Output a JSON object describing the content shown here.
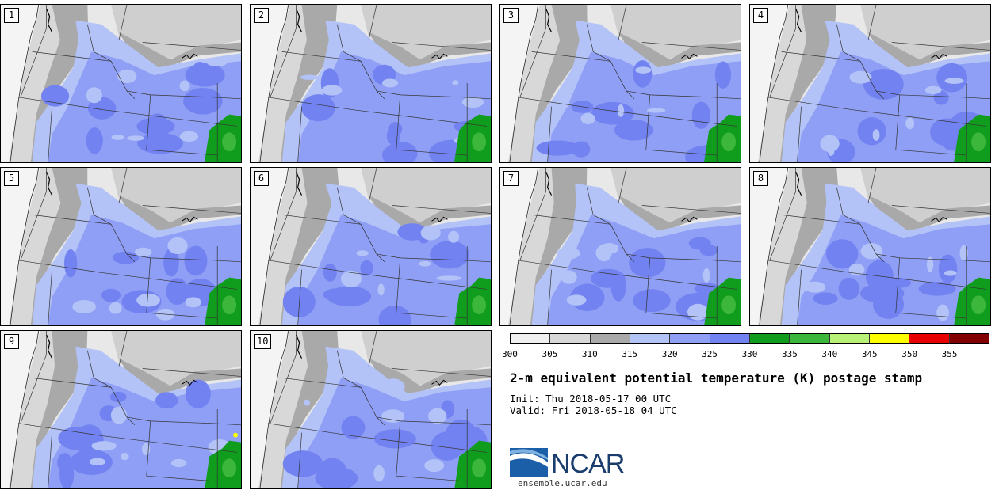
{
  "panels": [
    {
      "label": "1"
    },
    {
      "label": "2"
    },
    {
      "label": "3"
    },
    {
      "label": "4"
    },
    {
      "label": "5"
    },
    {
      "label": "6"
    },
    {
      "label": "7"
    },
    {
      "label": "8"
    },
    {
      "label": "9"
    },
    {
      "label": "10"
    }
  ],
  "legend": {
    "ticks": [
      "300",
      "305",
      "310",
      "315",
      "320",
      "325",
      "330",
      "335",
      "340",
      "345",
      "350",
      "355"
    ],
    "colors": [
      "#f0f0f0",
      "#d8d8d8",
      "#a9a9a9",
      "#b4c3f7",
      "#8f9ff5",
      "#7282f0",
      "#109d1e",
      "#3cb73c",
      "#b8f078",
      "#ffff00",
      "#e60000",
      "#820000"
    ]
  },
  "title": "2-m equivalent potential temperature (K) postage stamp",
  "init": "Init: Thu 2018-05-17 00 UTC",
  "valid": "Valid: Fri 2018-05-18 04 UTC",
  "logo": {
    "text": "NCAR",
    "site": "ensemble.ucar.edu"
  }
}
